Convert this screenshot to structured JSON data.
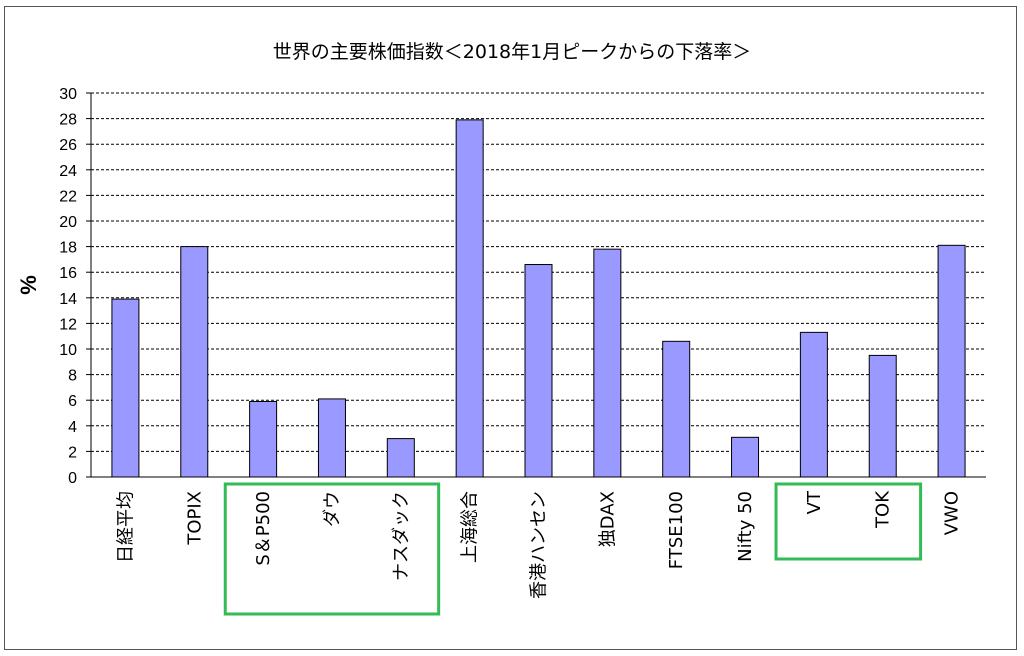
{
  "chart_data": {
    "type": "bar",
    "title": "世界の主要株価指数＜2018年1月ピークからの下落率＞",
    "xlabel": "",
    "ylabel": "%",
    "ylim": [
      0,
      30
    ],
    "yticks": [
      0,
      2,
      4,
      6,
      8,
      10,
      12,
      14,
      16,
      18,
      20,
      22,
      24,
      26,
      28,
      30
    ],
    "grid": true,
    "categories": [
      "日経平均",
      "TOPIX",
      "S＆P500",
      "ダウ",
      "ナスダック",
      "上海総合",
      "香港ハンセン",
      "独DAX",
      "FTSE100",
      "Nifty 50",
      "VT",
      "TOK",
      "VWO"
    ],
    "values": [
      13.9,
      18.0,
      5.9,
      6.1,
      3.0,
      27.9,
      16.6,
      17.8,
      10.6,
      3.1,
      11.3,
      9.5,
      18.1
    ],
    "colors": {
      "bar": "#9999ff",
      "bar_stroke": "#000000",
      "highlight_box": "#33bb55",
      "grid": "#000000"
    },
    "highlight_groups": [
      [
        "S＆P500",
        "ダウ",
        "ナスダック"
      ],
      [
        "VT",
        "TOK"
      ]
    ]
  }
}
